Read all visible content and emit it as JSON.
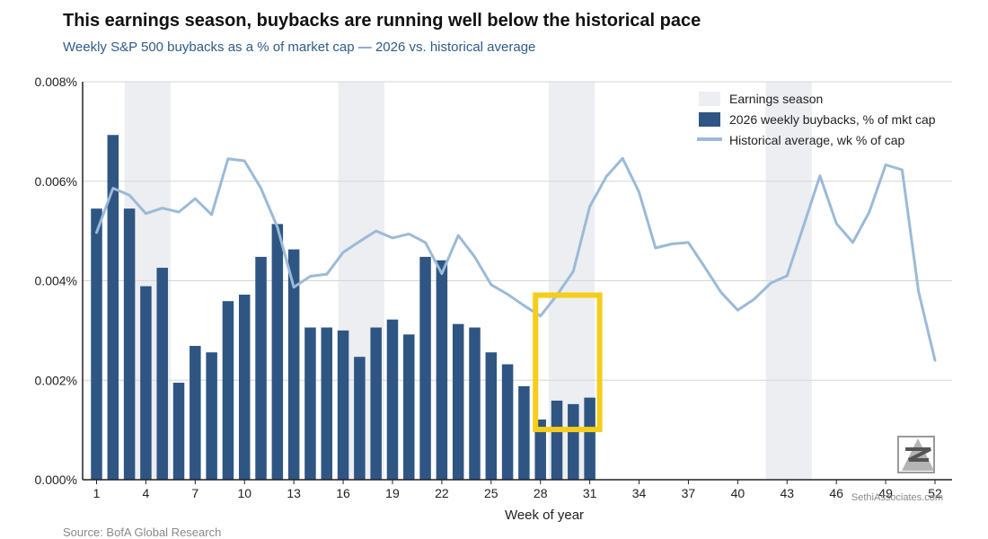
{
  "header": {
    "title": "This earnings season, buybacks are running well below the historical pace",
    "subtitle": "Weekly S&P 500 buybacks as a % of market cap  —  2026 vs. historical average"
  },
  "footer": {
    "source": "Source: BofA Global Research"
  },
  "watermark": {
    "text": "SethiAssociates.com"
  },
  "colors": {
    "bar": "#2f5583",
    "line": "#9bbad8",
    "band": "#eceef1",
    "highlight": "#f5cd1a",
    "grid": "#d6d6d6"
  },
  "chart_data": {
    "type": "bar",
    "xlabel": "Week of year",
    "ylabel": "",
    "xlim": [
      1,
      52
    ],
    "ylim": [
      0,
      0.008
    ],
    "y_ticks": [
      "0.000%",
      "0.002%",
      "0.004%",
      "0.006%",
      "0.008%"
    ],
    "x_ticks": [
      "1",
      "4",
      "7",
      "10",
      "13",
      "16",
      "19",
      "22",
      "25",
      "28",
      "31",
      "34",
      "37",
      "40",
      "43",
      "46",
      "49",
      "52"
    ],
    "grid": "horizontal",
    "legend_position": "top-right",
    "legend": [
      "Earnings season",
      "2026 weekly buybacks, % of mkt cap",
      "Historical average, wk % of cap"
    ],
    "shaded_bands": [
      {
        "name": "Earnings season",
        "from_week": 2.7,
        "to_week": 5.5
      },
      {
        "name": "Earnings season",
        "from_week": 15.7,
        "to_week": 18.5
      },
      {
        "name": "Earnings season",
        "from_week": 28.5,
        "to_week": 31.3
      },
      {
        "name": "Earnings season",
        "from_week": 41.7,
        "to_week": 44.5
      }
    ],
    "highlight_box": {
      "from_week": 27.7,
      "to_week": 31.6,
      "y_low": 0.00101,
      "y_high": 0.00371
    },
    "series": [
      {
        "name": "2026 weekly buybacks, % of mkt cap",
        "type": "bar",
        "x": [
          1,
          2,
          3,
          4,
          5,
          6,
          7,
          8,
          9,
          10,
          11,
          12,
          13,
          14,
          15,
          16,
          17,
          18,
          19,
          20,
          21,
          22,
          23,
          24,
          25,
          26,
          27,
          28,
          29,
          30,
          31
        ],
        "values": [
          0.00545,
          0.00693,
          0.00545,
          0.00389,
          0.00426,
          0.00195,
          0.00269,
          0.00256,
          0.00359,
          0.00372,
          0.00448,
          0.00514,
          0.00463,
          0.00306,
          0.00306,
          0.003,
          0.00247,
          0.00306,
          0.00322,
          0.00292,
          0.00448,
          0.00441,
          0.00313,
          0.00306,
          0.00256,
          0.00232,
          0.00188,
          0.00121,
          0.00159,
          0.00152,
          0.00165
        ]
      },
      {
        "name": "Historical average, wk % of cap",
        "type": "line",
        "x": [
          1,
          2,
          3,
          4,
          5,
          6,
          7,
          8,
          9,
          10,
          11,
          12,
          13,
          14,
          15,
          16,
          17,
          18,
          19,
          20,
          21,
          22,
          23,
          24,
          25,
          26,
          27,
          28,
          29,
          30,
          31,
          32,
          33,
          34,
          35,
          36,
          37,
          38,
          39,
          40,
          41,
          42,
          43,
          44,
          45,
          46,
          47,
          48,
          49,
          50,
          51,
          52
        ],
        "values": [
          0.00497,
          0.00586,
          0.00572,
          0.00535,
          0.00546,
          0.00538,
          0.00565,
          0.00533,
          0.00645,
          0.00641,
          0.00586,
          0.00508,
          0.00387,
          0.00409,
          0.00413,
          0.00457,
          0.00479,
          0.005,
          0.00486,
          0.00494,
          0.00477,
          0.00414,
          0.00491,
          0.00448,
          0.00392,
          0.00373,
          0.0035,
          0.00329,
          0.00371,
          0.00419,
          0.00549,
          0.00609,
          0.00646,
          0.00578,
          0.00466,
          0.00474,
          0.00477,
          0.00427,
          0.00376,
          0.00341,
          0.00363,
          0.00395,
          0.0041,
          0.0051,
          0.00611,
          0.00515,
          0.00477,
          0.00538,
          0.00633,
          0.00623,
          0.00378,
          0.0024
        ]
      }
    ]
  }
}
